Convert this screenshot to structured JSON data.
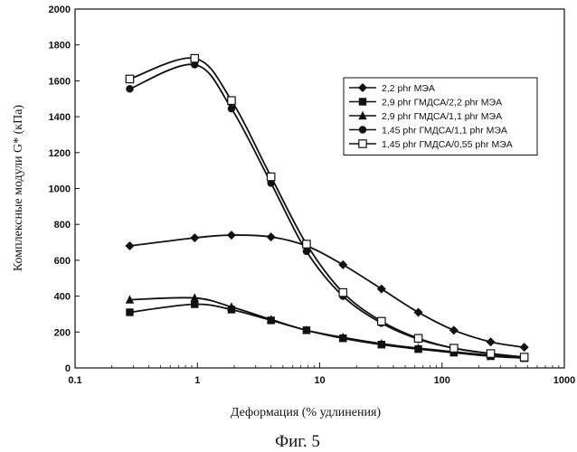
{
  "chart_data": {
    "type": "line",
    "title": "",
    "xlabel": "Деформация (% удлинения)",
    "ylabel": "Комплексные модули G* (кПа)",
    "xscale": "log",
    "xlim": [
      0.1,
      1000
    ],
    "ylim": [
      0,
      2000
    ],
    "xticks": [
      0.1,
      1,
      10,
      100,
      1000
    ],
    "xtick_labels": [
      "0.1",
      "1",
      "10",
      "100",
      "1000"
    ],
    "yticks": [
      0,
      200,
      400,
      600,
      800,
      1000,
      1200,
      1400,
      1600,
      1800,
      2000
    ],
    "ytick_labels": [
      "0",
      "200",
      "400",
      "600",
      "800",
      "1000",
      "1200",
      "1400",
      "1600",
      "1800",
      "2000"
    ],
    "grid": false,
    "legend_position": "right",
    "x": [
      0.28,
      0.95,
      1.9,
      4.0,
      7.8,
      15.5,
      32,
      64,
      125,
      250,
      470
    ],
    "series": [
      {
        "name": "2,2 phr МЭА",
        "marker": "diamond",
        "values": [
          680,
          725,
          740,
          730,
          680,
          575,
          440,
          310,
          210,
          145,
          115
        ]
      },
      {
        "name": "2,9 phr ГМДСА/2,2 phr МЭА",
        "marker": "square",
        "values": [
          310,
          355,
          325,
          265,
          210,
          165,
          130,
          105,
          85,
          65,
          55
        ]
      },
      {
        "name": "2,9 phr ГМДСА/1,1 phr МЭА",
        "marker": "triangle",
        "values": [
          380,
          390,
          340,
          270,
          210,
          170,
          135,
          110,
          90,
          70,
          55
        ]
      },
      {
        "name": "1,45 phr ГМДСА/1,1 phr МЭА",
        "marker": "circle",
        "values": [
          1555,
          1690,
          1445,
          1030,
          650,
          400,
          250,
          160,
          110,
          80,
          60
        ]
      },
      {
        "name": "1,45 phr ГМДСА/0,55 phr МЭА",
        "marker": "open-square",
        "values": [
          1610,
          1725,
          1490,
          1065,
          690,
          420,
          260,
          165,
          110,
          80,
          60
        ]
      }
    ]
  },
  "caption": "Фиг. 5"
}
